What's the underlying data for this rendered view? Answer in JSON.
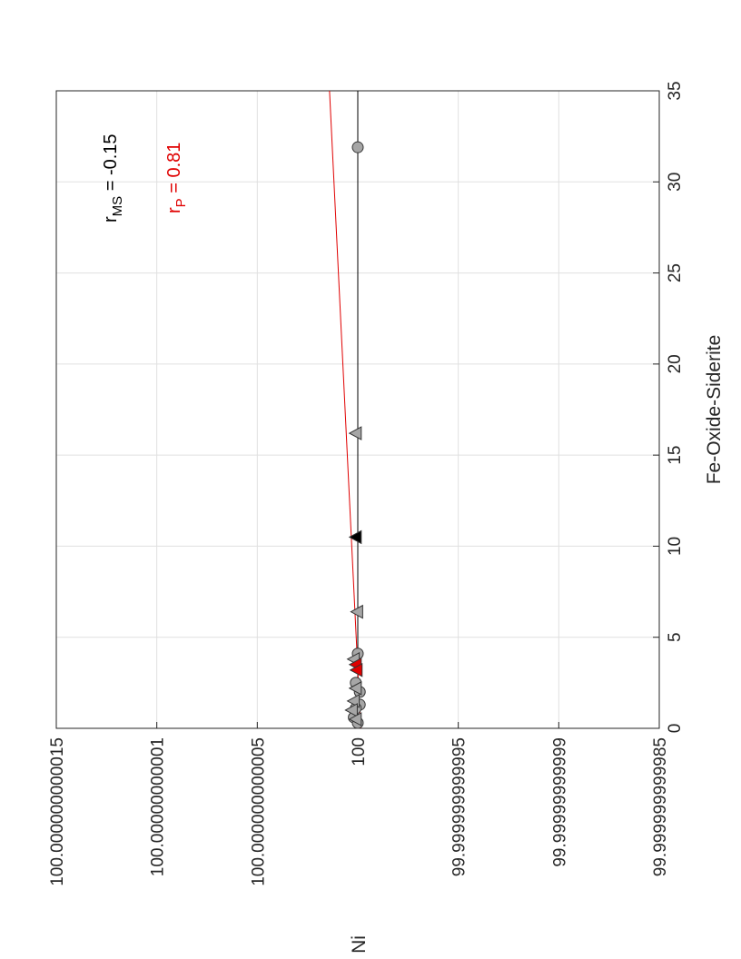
{
  "chart_data": {
    "type": "scatter",
    "x_label": "Fe-Oxide-Siderite",
    "y_label": "Ni",
    "xlim": [
      0,
      35
    ],
    "xticks": [
      0,
      5,
      10,
      15,
      20,
      25,
      30,
      35
    ],
    "ylim": [
      99.999999999985,
      100.000000000015
    ],
    "yticks": [
      {
        "value": 99.999999999985,
        "label": "99.999999999985"
      },
      {
        "value": 99.99999999999,
        "label": "99.99999999999"
      },
      {
        "value": 99.999999999995,
        "label": "99.999999999995"
      },
      100,
      {
        "value": 100.000000000005,
        "label": "100.000000000005"
      },
      {
        "value": 100.00000000001,
        "label": "100.00000000001"
      },
      {
        "value": 100.000000000015,
        "label": "100.000000000015"
      }
    ],
    "grid": true,
    "series": [
      {
        "marker": "circle",
        "color": "#a6a6a6",
        "x": [
          31.9,
          4.1,
          2.0,
          1.3,
          1.1,
          0.6,
          0.3,
          2.5
        ],
        "y": [
          100,
          100,
          99.9999999999999,
          99.9999999999999,
          100.0000000000001,
          100.0000000000002,
          100,
          100.0000000000001
        ]
      },
      {
        "marker": "triangle",
        "color": "#a6a6a6",
        "x": [
          16.2,
          6.4,
          3.8,
          2.2,
          1.5,
          1.0,
          0.5
        ],
        "y": [
          100.0000000000001,
          100.00000000000003,
          100.0000000000002,
          100.0000000000001,
          100.0000000000002,
          100.0000000000003,
          100.0000000000001
        ]
      },
      {
        "marker": "triangle",
        "color": "#000000",
        "x": [
          10.5
        ],
        "y": [
          100.0000000000001
        ]
      },
      {
        "marker": "triangle",
        "color": "#e00000",
        "x": [
          3.5,
          3.2
        ],
        "y": [
          100.0000000000001,
          100.00000000000006
        ]
      }
    ],
    "lines": [
      {
        "color": "#000000",
        "x": [
          0,
          35
        ],
        "y": [
          100,
          100
        ]
      },
      {
        "color": "#e00000",
        "x": [
          0,
          35
        ],
        "y": [
          99.99999999999986,
          100.0000000000014
        ]
      }
    ],
    "annotations": [
      {
        "main": "r",
        "sub": "MS",
        "rest": " = -0.15",
        "color": "#000000"
      },
      {
        "main": "r",
        "sub": "P",
        "rest": " = 0.81",
        "color": "#e00000"
      }
    ]
  }
}
